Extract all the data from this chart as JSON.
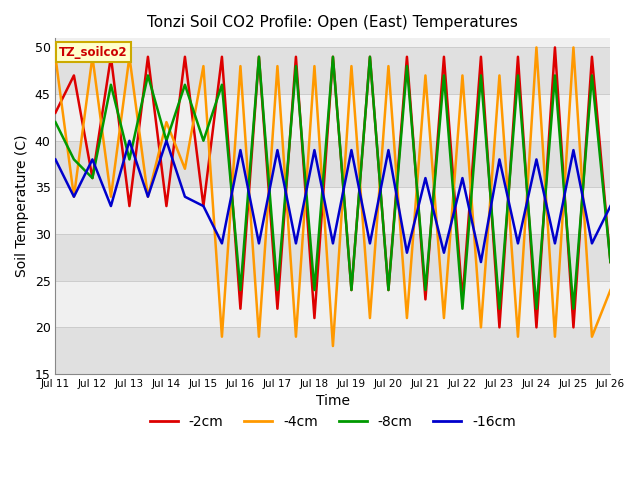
{
  "title": "Tonzi Soil CO2 Profile: Open (East) Temperatures",
  "xlabel": "Time",
  "ylabel": "Soil Temperature (C)",
  "ylim": [
    15,
    51
  ],
  "yticks": [
    15,
    20,
    25,
    30,
    35,
    40,
    45,
    50
  ],
  "legend_label": "TZ_soilco2",
  "series_labels": [
    "-2cm",
    "-4cm",
    "-8cm",
    "-16cm"
  ],
  "series_colors": [
    "#dd0000",
    "#ff9900",
    "#009900",
    "#0000cc"
  ],
  "bg_stripe_color": "#e0e0e0",
  "bg_white_color": "#f0f0f0",
  "x_labels": [
    "Jul 11",
    "Jul 12",
    "Jul 13",
    "Jul 14",
    "Jul 15",
    "Jul 16",
    "Jul 17",
    "Jul 18",
    "Jul 19",
    "Jul 20",
    "Jul 21",
    "Jul 22",
    "Jul 23",
    "Jul 24",
    "Jul 25",
    "Jul 26"
  ],
  "x_tick_pos": [
    11,
    12,
    13,
    14,
    15,
    16,
    17,
    18,
    19,
    20,
    21,
    22,
    23,
    24,
    25,
    26
  ],
  "time_values": [
    11.0,
    11.5,
    12.0,
    12.5,
    13.0,
    13.5,
    14.0,
    14.5,
    15.0,
    15.5,
    16.0,
    16.5,
    17.0,
    17.5,
    18.0,
    18.5,
    19.0,
    19.5,
    20.0,
    20.5,
    21.0,
    21.5,
    22.0,
    22.5,
    23.0,
    23.5,
    24.0,
    24.5,
    25.0,
    25.5,
    26.0
  ],
  "depth_2cm": [
    43,
    47,
    36,
    49,
    33,
    49,
    33,
    49,
    33,
    49,
    22,
    49,
    22,
    49,
    21,
    49,
    24,
    49,
    24,
    49,
    23,
    49,
    23,
    49,
    20,
    49,
    20,
    50,
    20,
    49,
    27
  ],
  "depth_4cm": [
    49,
    34,
    49,
    34,
    49,
    34,
    42,
    37,
    48,
    19,
    48,
    19,
    48,
    19,
    48,
    18,
    48,
    21,
    48,
    21,
    47,
    21,
    47,
    20,
    47,
    19,
    50,
    19,
    50,
    19,
    24
  ],
  "depth_8cm": [
    42,
    38,
    36,
    46,
    38,
    47,
    40,
    46,
    40,
    46,
    24,
    49,
    24,
    48,
    24,
    49,
    24,
    49,
    24,
    48,
    24,
    47,
    22,
    47,
    22,
    47,
    22,
    47,
    22,
    47,
    27
  ],
  "depth_16cm": [
    38,
    34,
    38,
    33,
    40,
    34,
    40,
    34,
    33,
    29,
    39,
    29,
    39,
    29,
    39,
    29,
    39,
    29,
    39,
    28,
    36,
    28,
    36,
    27,
    38,
    29,
    38,
    29,
    39,
    29,
    33
  ]
}
